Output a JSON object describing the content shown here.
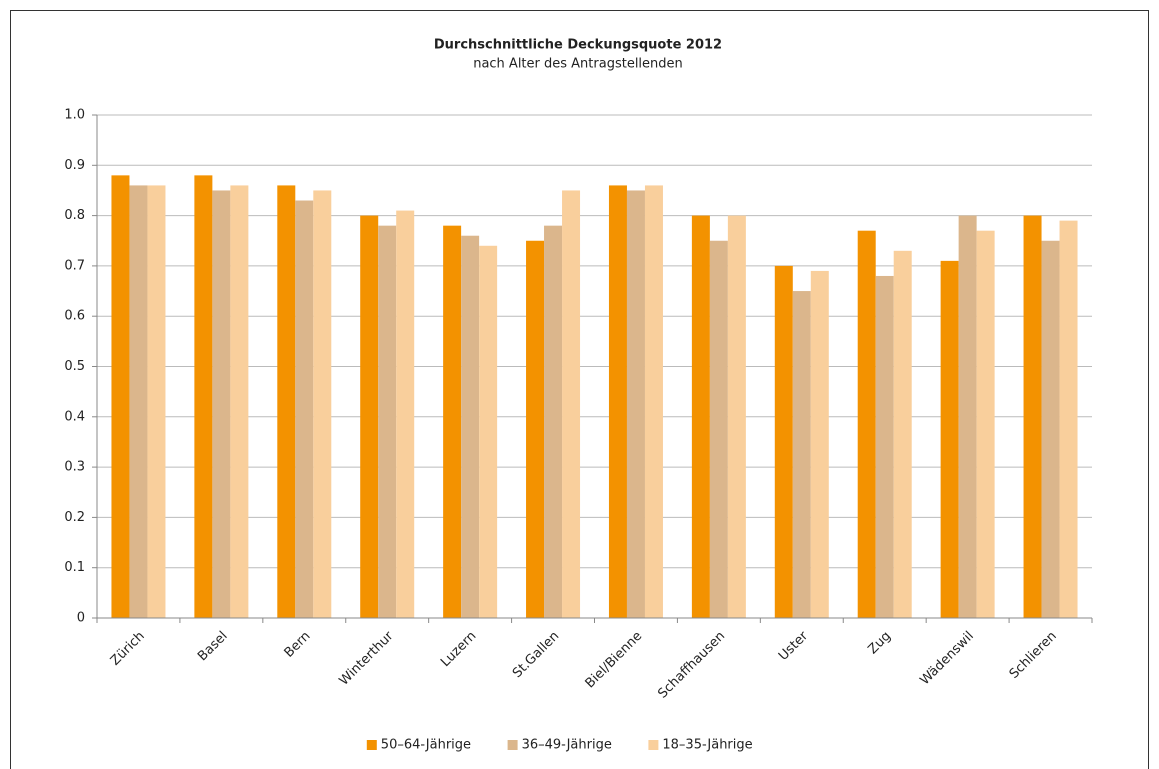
{
  "chart_data": {
    "type": "bar",
    "title": "Durchschnittliche Deckungsquote 2012",
    "subtitle": "nach Alter des Antragstellenden",
    "categories": [
      "Zürich",
      "Basel",
      "Bern",
      "Winterthur",
      "Luzern",
      "St.Gallen",
      "Biel/Bienne",
      "Schaffhausen",
      "Uster",
      "Zug",
      "Wädenswil",
      "Schlieren"
    ],
    "series": [
      {
        "name": "50–64-Jährige",
        "color": "#f39200",
        "values": [
          0.88,
          0.88,
          0.86,
          0.8,
          0.78,
          0.75,
          0.86,
          0.8,
          0.7,
          0.77,
          0.71,
          0.8
        ]
      },
      {
        "name": "36–49-Jährige",
        "color": "#dbb68c",
        "values": [
          0.86,
          0.85,
          0.83,
          0.78,
          0.76,
          0.78,
          0.85,
          0.75,
          0.65,
          0.68,
          0.8,
          0.75
        ]
      },
      {
        "name": "18–35-Jährige",
        "color": "#f9cf9c",
        "values": [
          0.86,
          0.86,
          0.85,
          0.81,
          0.74,
          0.85,
          0.86,
          0.8,
          0.69,
          0.73,
          0.77,
          0.79
        ]
      }
    ],
    "ylim": [
      0,
      1
    ],
    "yticks": [
      0,
      0.1,
      0.2,
      0.3,
      0.4,
      0.5,
      0.6,
      0.7,
      0.8,
      0.9,
      {
        "value": 1,
        "label": "1.0"
      }
    ],
    "grid": true,
    "legend": "bottom"
  }
}
